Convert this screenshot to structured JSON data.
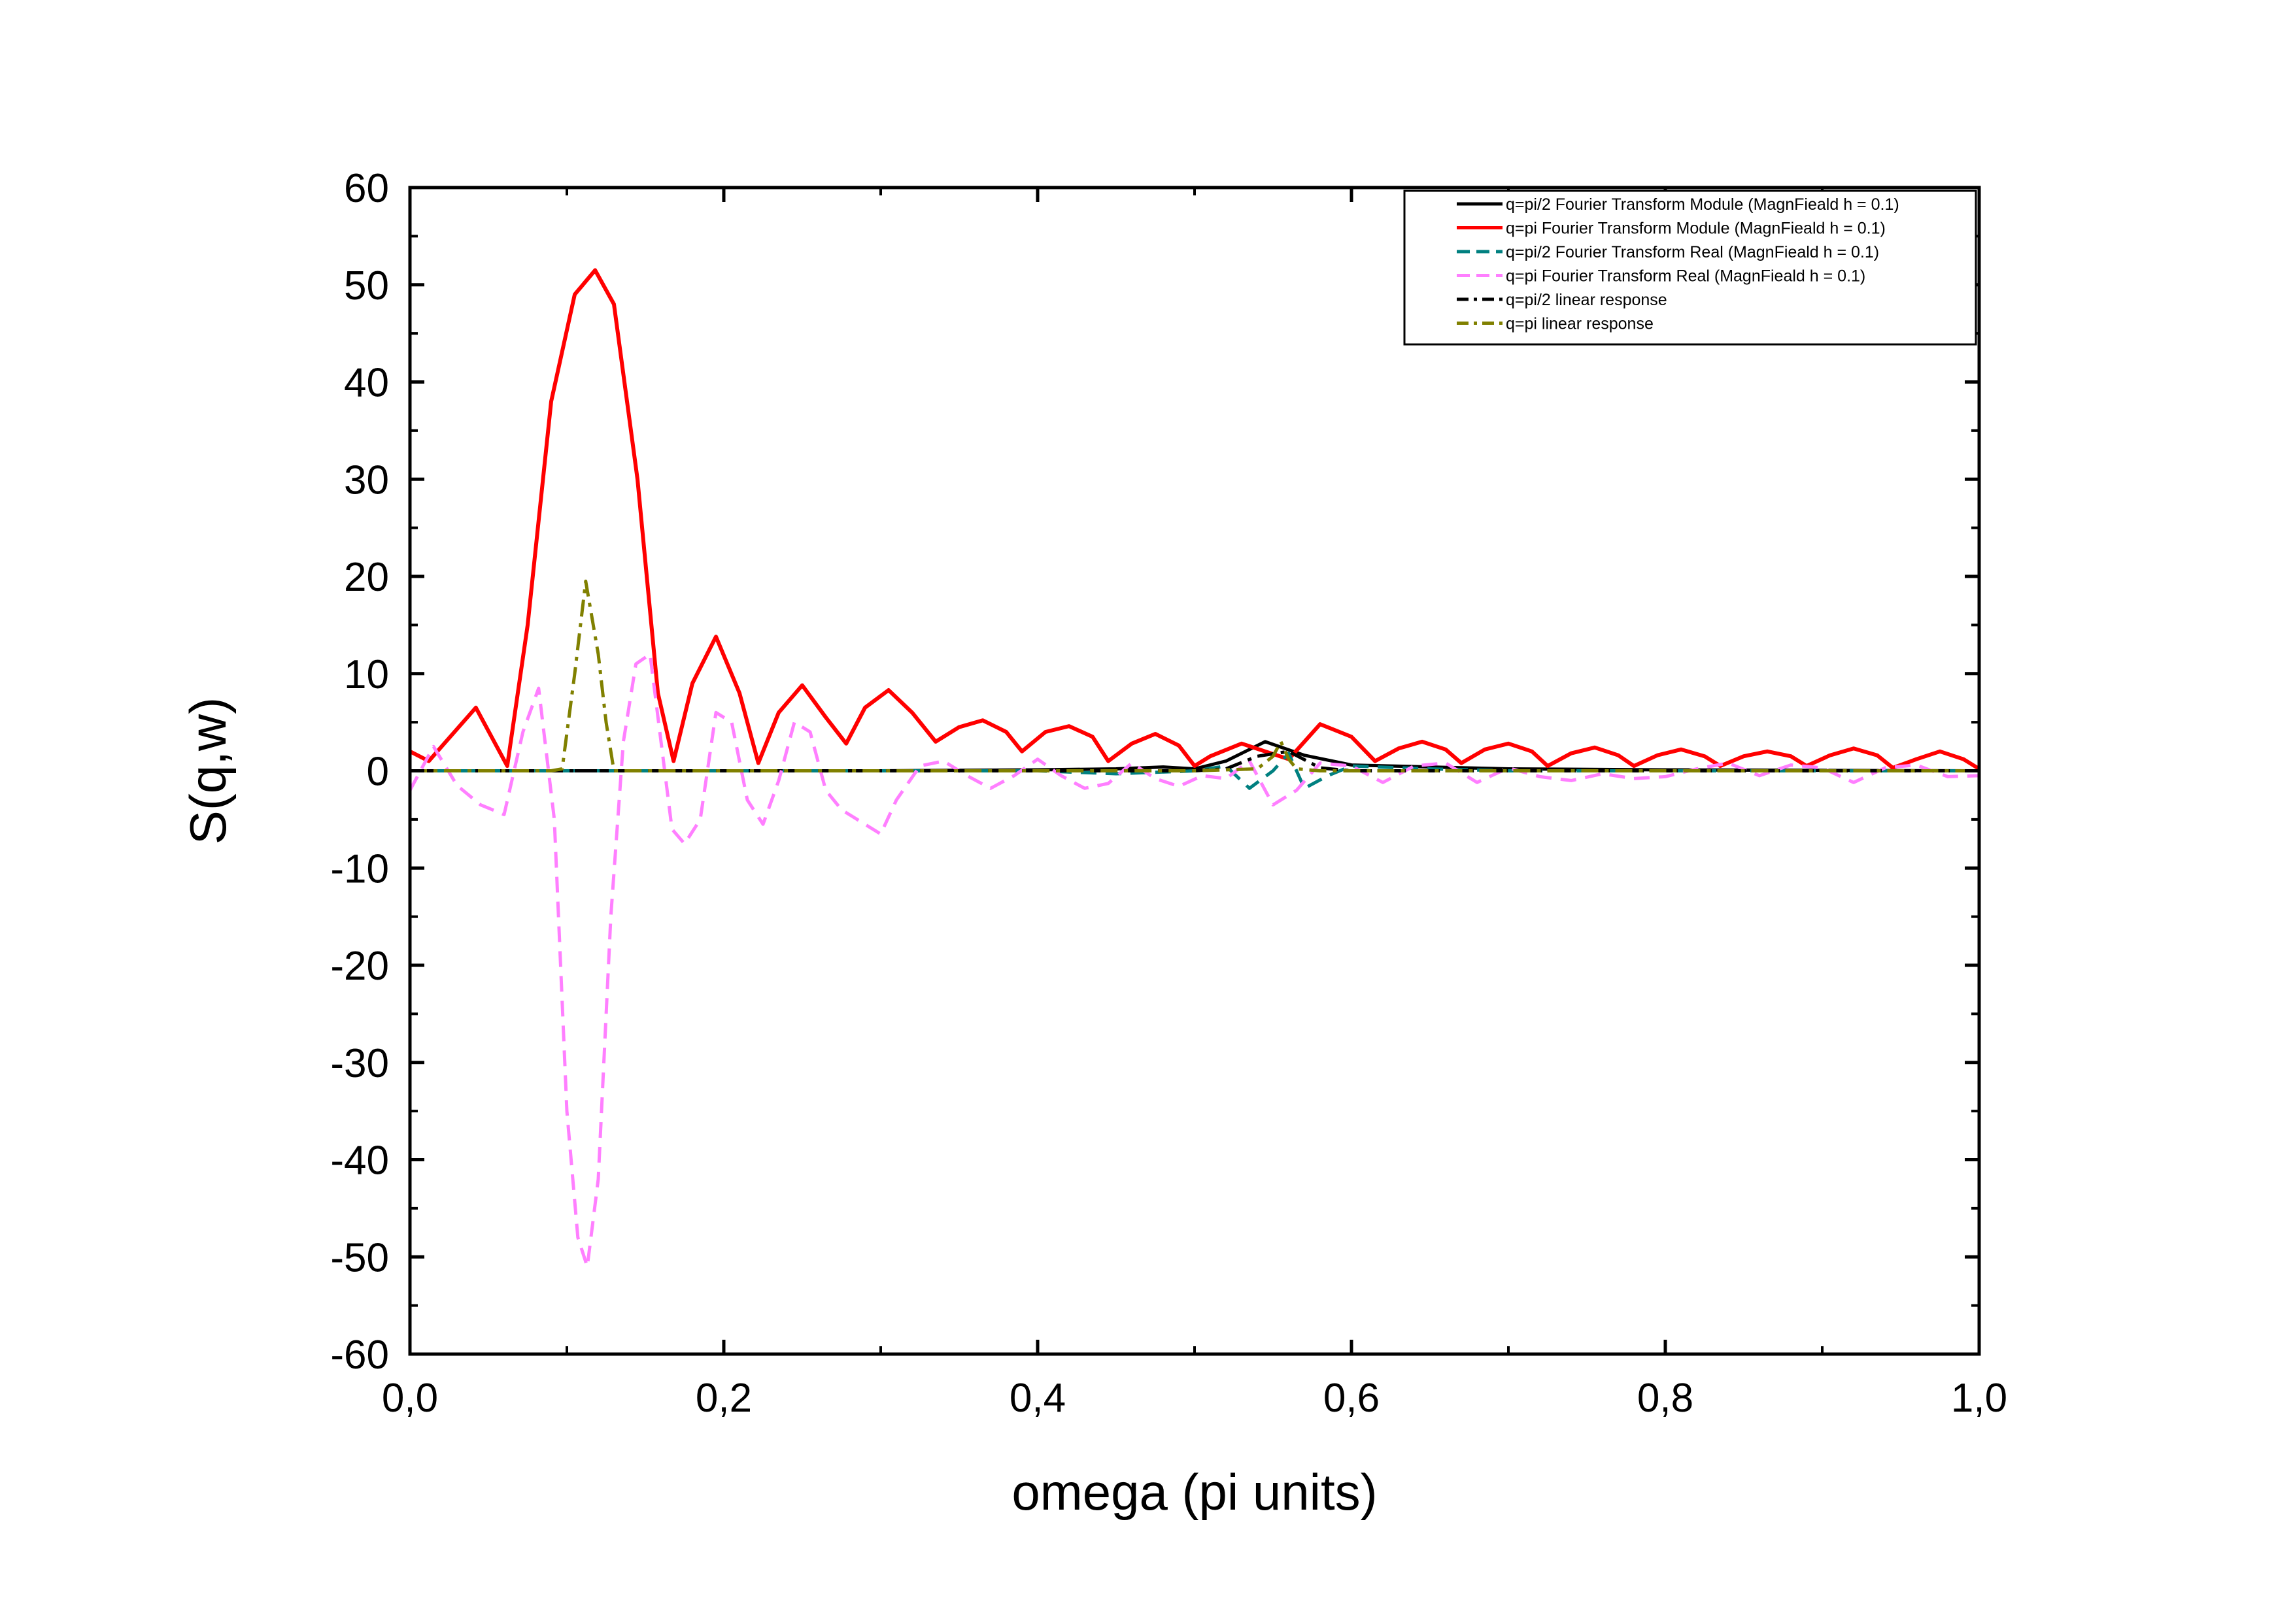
{
  "chart_data": {
    "type": "line",
    "title": "",
    "xlabel": "omega (pi units)",
    "ylabel": "S(q,w)",
    "xlim": [
      0.0,
      1.0
    ],
    "ylim": [
      -60,
      60
    ],
    "x_ticks": [
      0.0,
      0.2,
      0.4,
      0.6,
      0.8,
      1.0
    ],
    "x_tick_labels": [
      "0,0",
      "0,2",
      "0,4",
      "0,6",
      "0,8",
      "1,0"
    ],
    "y_ticks": [
      60,
      50,
      40,
      30,
      20,
      10,
      0,
      -10,
      -20,
      -30,
      -40,
      -50,
      -60
    ],
    "y_tick_labels": [
      "60",
      "50",
      "40",
      "30",
      "20",
      "10",
      "0",
      "-10",
      "-20",
      "-30",
      "-40",
      "-50",
      "-60"
    ],
    "grid": false,
    "legend_position": "top-right",
    "series": [
      {
        "name": "q=pi/2 Fourier Transform Module (MagnFieald h = 0.1)",
        "color": "#000000",
        "style": "solid",
        "x": [
          0.0,
          0.1,
          0.2,
          0.3,
          0.4,
          0.45,
          0.48,
          0.5,
          0.52,
          0.545,
          0.57,
          0.6,
          0.65,
          0.7,
          0.8,
          0.9,
          1.0
        ],
        "y": [
          0,
          0,
          0,
          0,
          0.1,
          0.2,
          0.4,
          0.2,
          1.0,
          3.0,
          1.6,
          0.6,
          0.4,
          0.2,
          0.1,
          0.05,
          0
        ]
      },
      {
        "name": "q=pi Fourier Transform Module (MagnFieald h = 0.1)",
        "color": "#ff0000",
        "style": "solid",
        "x": [
          0.0,
          0.012,
          0.042,
          0.062,
          0.075,
          0.09,
          0.105,
          0.118,
          0.13,
          0.145,
          0.158,
          0.168,
          0.18,
          0.195,
          0.21,
          0.222,
          0.235,
          0.25,
          0.265,
          0.278,
          0.29,
          0.305,
          0.32,
          0.335,
          0.35,
          0.365,
          0.38,
          0.39,
          0.405,
          0.42,
          0.435,
          0.445,
          0.46,
          0.475,
          0.49,
          0.5,
          0.51,
          0.53,
          0.545,
          0.56,
          0.58,
          0.6,
          0.615,
          0.63,
          0.645,
          0.66,
          0.67,
          0.685,
          0.7,
          0.715,
          0.725,
          0.74,
          0.755,
          0.77,
          0.78,
          0.795,
          0.81,
          0.825,
          0.835,
          0.85,
          0.865,
          0.88,
          0.89,
          0.905,
          0.92,
          0.935,
          0.945,
          0.96,
          0.975,
          0.99,
          1.0
        ],
        "y": [
          2.0,
          1.0,
          6.5,
          0.5,
          15,
          38,
          49,
          51.5,
          48,
          30,
          8,
          1.0,
          9,
          13.8,
          8,
          0.8,
          6,
          8.8,
          5.5,
          2.8,
          6.5,
          8.3,
          6,
          3.0,
          4.5,
          5.2,
          4.0,
          2.0,
          4.0,
          4.6,
          3.5,
          1.0,
          2.8,
          3.8,
          2.6,
          0.5,
          1.5,
          2.8,
          2.0,
          1.2,
          4.8,
          3.5,
          1.0,
          2.3,
          3.0,
          2.2,
          0.8,
          2.2,
          2.8,
          2.0,
          0.5,
          1.8,
          2.4,
          1.6,
          0.5,
          1.6,
          2.2,
          1.5,
          0.5,
          1.5,
          2.0,
          1.5,
          0.5,
          1.6,
          2.3,
          1.6,
          0.3,
          1.2,
          2.0,
          1.2,
          0.2
        ]
      },
      {
        "name": "q=pi/2 Fourier Transform Real (MagnFieald h = 0.1)",
        "color": "#008080",
        "style": "dashed",
        "x": [
          0.0,
          0.1,
          0.2,
          0.3,
          0.4,
          0.45,
          0.5,
          0.52,
          0.535,
          0.55,
          0.56,
          0.57,
          0.585,
          0.6,
          0.65,
          0.7,
          0.8,
          0.9,
          1.0
        ],
        "y": [
          0,
          0,
          0,
          0,
          0,
          -0.3,
          0,
          0.5,
          -1.8,
          0,
          1.8,
          -1.8,
          -0.5,
          0.5,
          0.2,
          0,
          0,
          0,
          0
        ]
      },
      {
        "name": "q=pi Fourier Transform Real (MagnFieald h = 0.1)",
        "color": "#ff7fff",
        "style": "dashed",
        "x": [
          0.0,
          0.015,
          0.03,
          0.045,
          0.06,
          0.072,
          0.082,
          0.092,
          0.1,
          0.107,
          0.113,
          0.12,
          0.128,
          0.136,
          0.144,
          0.153,
          0.16,
          0.167,
          0.175,
          0.185,
          0.195,
          0.205,
          0.215,
          0.225,
          0.235,
          0.245,
          0.255,
          0.265,
          0.275,
          0.285,
          0.3,
          0.31,
          0.325,
          0.34,
          0.355,
          0.37,
          0.385,
          0.4,
          0.415,
          0.43,
          0.445,
          0.46,
          0.475,
          0.49,
          0.505,
          0.52,
          0.535,
          0.55,
          0.565,
          0.58,
          0.6,
          0.62,
          0.64,
          0.66,
          0.68,
          0.7,
          0.72,
          0.74,
          0.76,
          0.78,
          0.8,
          0.82,
          0.84,
          0.86,
          0.88,
          0.9,
          0.92,
          0.94,
          0.96,
          0.98,
          1.0
        ],
        "y": [
          -2,
          2.5,
          -1.5,
          -3.5,
          -4.5,
          4,
          8.5,
          -5,
          -35,
          -48,
          -51,
          -42,
          -15,
          3,
          11,
          12,
          3,
          -6,
          -7.5,
          -5,
          6,
          5,
          -3,
          -5.5,
          -1,
          5,
          4,
          -2,
          -4,
          -5,
          -6.5,
          -3,
          0.5,
          1,
          -0.5,
          -1.8,
          -0.5,
          1.2,
          -0.5,
          -1.8,
          -1.3,
          0.8,
          -0.8,
          -1.6,
          -0.5,
          -0.8,
          1.0,
          -3.5,
          -2,
          0.8,
          0.5,
          -1.2,
          0.5,
          0.8,
          -1.2,
          0.3,
          -0.6,
          -1.0,
          -0.3,
          -0.8,
          -0.6,
          0.2,
          0.8,
          -0.5,
          0.6,
          0.3,
          -1.2,
          0.3,
          0.6,
          -0.6,
          -0.5
        ]
      },
      {
        "name": "q=pi/2 linear response",
        "color": "#000000",
        "style": "dash-dot",
        "x": [
          0.0,
          0.1,
          0.2,
          0.3,
          0.4,
          0.45,
          0.5,
          0.52,
          0.54,
          0.56,
          0.58,
          0.6,
          0.7,
          0.8,
          0.9,
          1.0
        ],
        "y": [
          0,
          0,
          0,
          0,
          0,
          0,
          0,
          0.2,
          1.5,
          2.0,
          0.3,
          0,
          0,
          0,
          0,
          0
        ]
      },
      {
        "name": "q=pi linear response",
        "color": "#808000",
        "style": "dash-dot",
        "x": [
          0.0,
          0.09,
          0.097,
          0.105,
          0.112,
          0.12,
          0.125,
          0.13,
          0.2,
          0.3,
          0.4,
          0.5,
          0.54,
          0.55,
          0.555,
          0.56,
          0.565,
          0.58,
          0.6,
          0.7,
          0.8,
          0.9,
          1.0
        ],
        "y": [
          0,
          0,
          0.2,
          10,
          19.5,
          12,
          5,
          0,
          0,
          0,
          0,
          0,
          0.2,
          1.5,
          3.0,
          1.2,
          0.2,
          0,
          0,
          0,
          0,
          0,
          0
        ]
      }
    ]
  }
}
